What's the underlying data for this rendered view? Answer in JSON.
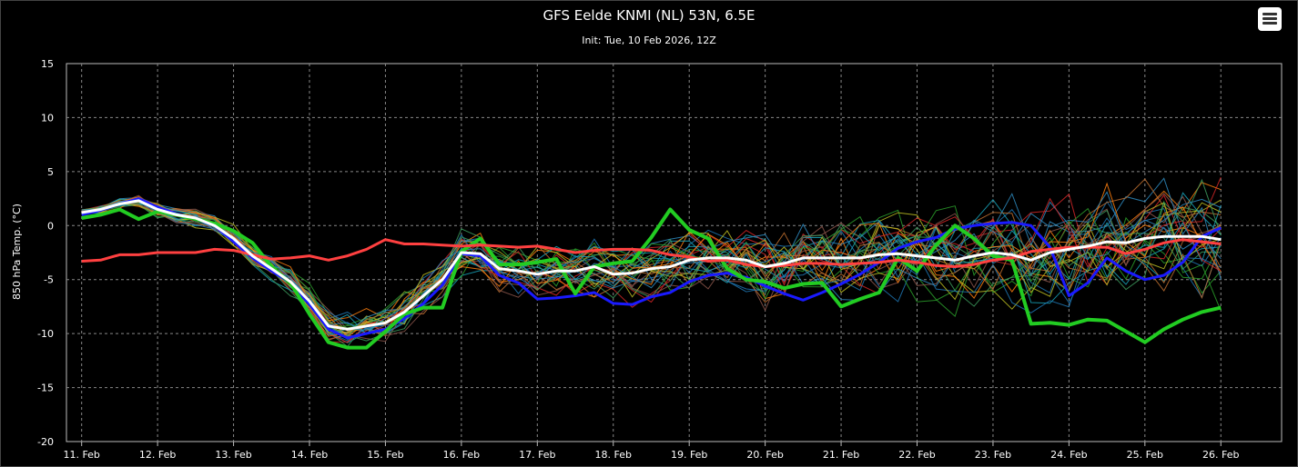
{
  "header": {
    "title": "GFS Eelde KNMI (NL) 53N, 6.5E",
    "subtitle": "Init: Tue, 10 Feb 2026, 12Z",
    "menu_icon": "hamburger-menu-icon"
  },
  "chart_data": {
    "type": "line",
    "title": "GFS Eelde KNMI (NL) 53N, 6.5E",
    "subtitle": "Init: Tue, 10 Feb 2026, 12Z",
    "xlabel": "",
    "ylabel": "850 hPa Temp. (°C)",
    "ylim": [
      -20,
      15
    ],
    "yticks": [
      15,
      10,
      5,
      0,
      -5,
      -10,
      -15,
      -20
    ],
    "xlim": [
      10.8,
      26.8
    ],
    "xticks": [
      11,
      12,
      13,
      14,
      15,
      16,
      17,
      18,
      19,
      20,
      21,
      22,
      23,
      24,
      25,
      26
    ],
    "xtick_labels": [
      "11. Feb",
      "12. Feb",
      "13. Feb",
      "14. Feb",
      "15. Feb",
      "16. Feb",
      "17. Feb",
      "18. Feb",
      "19. Feb",
      "20. Feb",
      "21. Feb",
      "22. Feb",
      "23. Feb",
      "24. Feb",
      "25. Feb",
      "26. Feb"
    ],
    "x_step_days": 0.25,
    "x_start_day": 11,
    "grid": true,
    "background": "#000000",
    "series": [
      {
        "name": "",
        "color": "#ffffff",
        "width": 3,
        "values": [
          1.2,
          1.5,
          2.0,
          2.3,
          1.5,
          1.0,
          0.7,
          0.0,
          -1.2,
          -2.8,
          -4.0,
          -5.2,
          -7.0,
          -9.3,
          -9.6,
          -9.3,
          -9.0,
          -8.0,
          -6.5,
          -5.0,
          -2.5,
          -2.6,
          -4.0,
          -4.2,
          -4.5,
          -4.2,
          -4.2,
          -3.8,
          -4.5,
          -4.4,
          -4.0,
          -3.8,
          -3.2,
          -3.0,
          -3.0,
          -3.2,
          -3.8,
          -3.5,
          -3.0,
          -3.0,
          -3.0,
          -3.0,
          -2.7,
          -2.6,
          -2.8,
          -3.0,
          -3.2,
          -2.8,
          -2.5,
          -2.7,
          -3.2,
          -2.5,
          -2.2,
          -1.9,
          -1.5,
          -1.6,
          -1.2,
          -1.0,
          -1.0,
          -1.0,
          -1.3
        ]
      },
      {
        "name": "",
        "color": "#ff4040",
        "width": 3,
        "values": [
          -3.3,
          -3.2,
          -2.7,
          -2.7,
          -2.5,
          -2.5,
          -2.5,
          -2.2,
          -2.3,
          -2.7,
          -3.1,
          -3.0,
          -2.8,
          -3.2,
          -2.8,
          -2.2,
          -1.3,
          -1.7,
          -1.7,
          -1.8,
          -1.9,
          -1.8,
          -1.9,
          -2.0,
          -1.9,
          -2.2,
          -2.5,
          -2.3,
          -2.2,
          -2.2,
          -2.3,
          -2.7,
          -2.9,
          -3.3,
          -3.2,
          -3.6,
          -3.8,
          -3.7,
          -3.5,
          -3.5,
          -3.6,
          -3.5,
          -3.4,
          -3.2,
          -3.4,
          -3.7,
          -3.8,
          -3.6,
          -3.2,
          -3.0,
          -2.4,
          -2.2,
          -2.0,
          -2.0,
          -2.0,
          -2.6,
          -2.2,
          -1.6,
          -1.3,
          -1.5,
          -1.7
        ]
      },
      {
        "name": "",
        "color": "#1a1aff",
        "width": 3,
        "values": [
          1.0,
          1.4,
          2.0,
          2.5,
          1.7,
          1.1,
          0.6,
          0.0,
          -1.5,
          -3.0,
          -4.2,
          -5.3,
          -7.3,
          -9.6,
          -10.4,
          -10.0,
          -9.6,
          -8.6,
          -7.2,
          -5.5,
          -2.6,
          -2.8,
          -4.6,
          -5.3,
          -6.8,
          -6.7,
          -6.5,
          -6.2,
          -7.2,
          -7.3,
          -6.6,
          -6.2,
          -5.2,
          -4.6,
          -4.4,
          -4.8,
          -5.6,
          -6.3,
          -6.9,
          -6.2,
          -5.4,
          -4.5,
          -3.4,
          -2.1,
          -1.5,
          -1.1,
          -0.3,
          0.0,
          0.2,
          0.3,
          0.0,
          -2.0,
          -6.5,
          -5.3,
          -3.0,
          -4.2,
          -5.0,
          -4.6,
          -3.4,
          -1.0,
          -0.2
        ]
      },
      {
        "name": "",
        "color": "#22cc22",
        "width": 4,
        "values": [
          0.7,
          1.0,
          1.5,
          0.6,
          1.3,
          1.0,
          0.6,
          0.2,
          -0.5,
          -1.6,
          -3.8,
          -5.3,
          -8.2,
          -10.8,
          -11.3,
          -11.3,
          -9.8,
          -8.2,
          -7.6,
          -7.6,
          -2.4,
          -1.2,
          -3.6,
          -3.6,
          -3.4,
          -3.1,
          -6.3,
          -3.8,
          -3.5,
          -3.3,
          -1.1,
          1.5,
          -0.4,
          -1.2,
          -4.0,
          -5.0,
          -5.2,
          -5.8,
          -5.4,
          -5.3,
          -7.5,
          -6.8,
          -6.2,
          -3.0,
          -4.2,
          -1.8,
          0.0,
          -1.2,
          -2.8,
          -3.2,
          -9.1,
          -9.0,
          -9.2,
          -8.7,
          -8.8,
          -9.8,
          -10.8,
          -9.6,
          -8.7,
          -8.0,
          -7.6
        ]
      }
    ],
    "ensemble": {
      "note": "",
      "colors": [
        "#1f77b4",
        "#2ca02c",
        "#ff7f0e",
        "#d62728",
        "#17a2b8",
        "#bcbd22",
        "#8c564b",
        "#3d9c5e",
        "#c07030",
        "#2e8bc0"
      ]
    }
  }
}
